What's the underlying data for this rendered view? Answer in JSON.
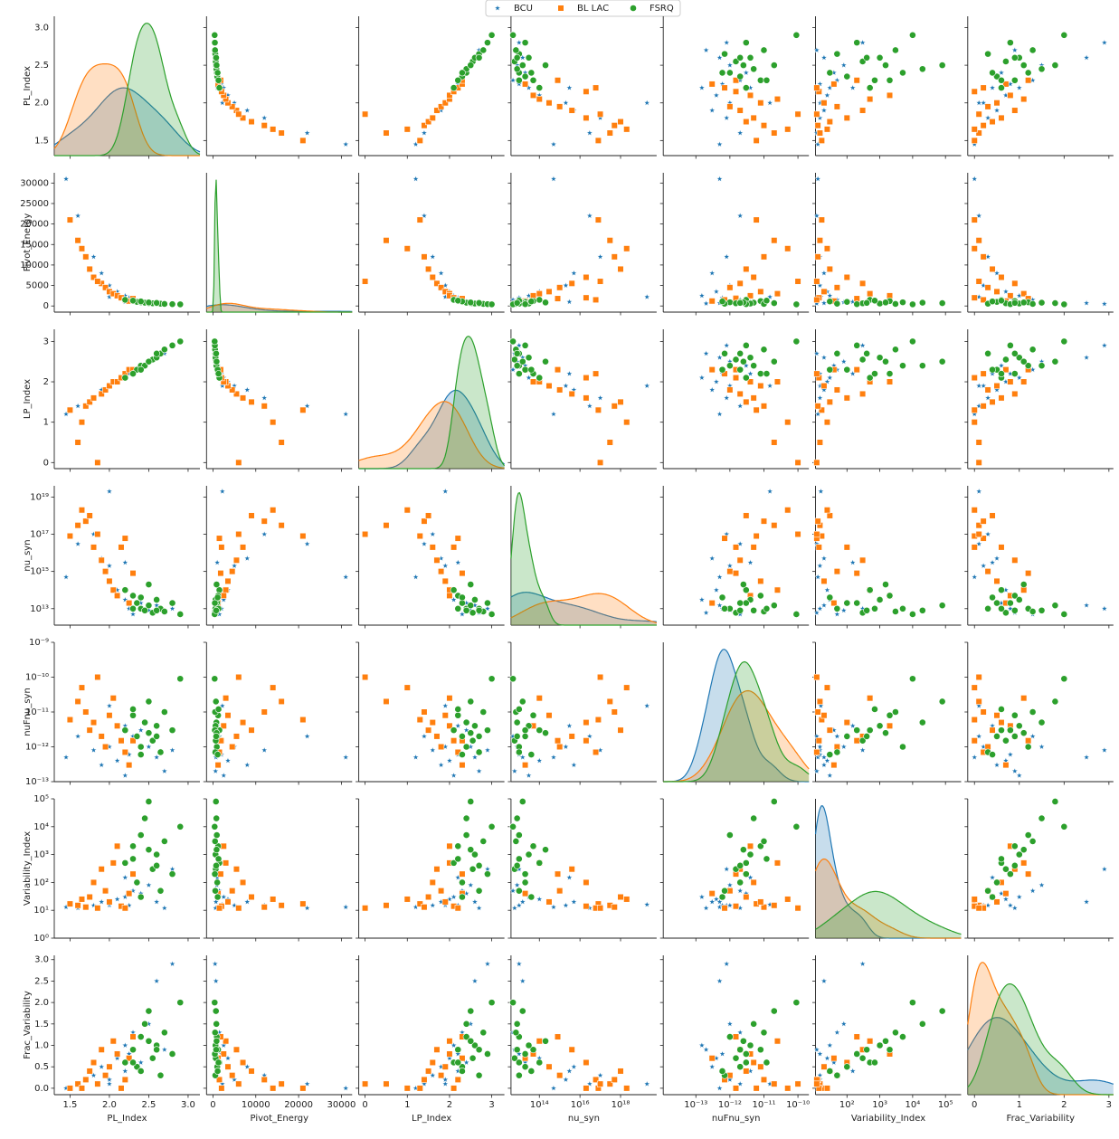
{
  "chart_data": {
    "type": "pairplot",
    "legend": "upper center",
    "variables": [
      {
        "name": "PL_Index",
        "log": false,
        "xlim": [
          1.3,
          3.15
        ],
        "ylim": [
          1.3,
          3.15
        ],
        "xticks": [
          {
            "value": 1.5,
            "label": "1.5"
          },
          {
            "value": 2.0,
            "label": "2.0"
          },
          {
            "value": 2.5,
            "label": "2.5"
          },
          {
            "value": 3.0,
            "label": "3.0"
          }
        ],
        "yticks": [
          {
            "value": 1.5,
            "label": "1.5"
          },
          {
            "value": 2.0,
            "label": "2.0"
          },
          {
            "value": 2.5,
            "label": "2.5"
          },
          {
            "value": 3.0,
            "label": "3.0"
          }
        ]
      },
      {
        "name": "Pivot_Energy",
        "log": false,
        "xlim": [
          -1500,
          32500
        ],
        "ylim": [
          -1500,
          32500
        ],
        "xticks": [
          0,
          10000,
          20000,
          30000
        ],
        "yticks": [
          0,
          5000,
          10000,
          15000,
          20000,
          25000,
          30000
        ]
      },
      {
        "name": "LP_Index",
        "log": false,
        "xlim": [
          -0.15,
          3.3
        ],
        "ylim": [
          -0.15,
          3.3
        ],
        "xticks": [
          0,
          1,
          2,
          3
        ],
        "yticks": [
          0,
          1,
          2,
          3
        ]
      },
      {
        "name": "nu_syn",
        "log": true,
        "xlim": [
          4000000000000.0,
          6e+19
        ],
        "ylim": [
          1300000000000.0,
          4e+19
        ],
        "xticks": [
          {
            "value": 100000000000000.0,
            "label": "10¹⁴"
          },
          {
            "value": 1e+16,
            "label": "10¹⁶"
          },
          {
            "value": 1e+18,
            "label": "10¹⁸"
          }
        ],
        "yticks": [
          {
            "value": 10000000000000.0,
            "label": "10¹³"
          },
          {
            "value": 1000000000000000.0,
            "label": "10¹⁵"
          },
          {
            "value": 1e+17,
            "label": "10¹⁷"
          },
          {
            "value": 1e+19,
            "label": "10¹⁹"
          }
        ]
      },
      {
        "name": "nuFnu_syn",
        "log": true,
        "xlim": [
          1.1e-14,
          2.1e-10
        ],
        "ylim": [
          1e-13,
          1e-09
        ],
        "xticks": [
          {
            "value": 1e-13,
            "label": "10⁻¹³"
          },
          {
            "value": 1e-12,
            "label": "10⁻¹²"
          },
          {
            "value": 1e-11,
            "label": "10⁻¹¹"
          },
          {
            "value": 1e-10,
            "label": "10⁻¹⁰"
          }
        ],
        "yticks": [
          {
            "value": 1e-13,
            "label": "10⁻¹³"
          },
          {
            "value": 1e-12,
            "label": "10⁻¹²"
          },
          {
            "value": 1e-11,
            "label": "10⁻¹¹"
          },
          {
            "value": 1e-10,
            "label": "10⁻¹⁰"
          },
          {
            "value": 1e-09,
            "label": "10⁻⁹"
          }
        ]
      },
      {
        "name": "Variability_Index",
        "log": true,
        "xlim": [
          11,
          300000.0
        ],
        "ylim": [
          1,
          100000.0
        ],
        "xticks": [
          {
            "value": 100,
            "label": "10²"
          },
          {
            "value": 1000,
            "label": "10³"
          },
          {
            "value": 10000,
            "label": "10⁴"
          },
          {
            "value": 100000,
            "label": "10⁵"
          }
        ],
        "yticks": [
          {
            "value": 1,
            "label": "10⁰"
          },
          {
            "value": 10,
            "label": "10¹"
          },
          {
            "value": 100,
            "label": "10²"
          },
          {
            "value": 1000,
            "label": "10³"
          },
          {
            "value": 10000,
            "label": "10⁴"
          },
          {
            "value": 100000,
            "label": "10⁵"
          }
        ]
      },
      {
        "name": "Frac_Variability",
        "log": false,
        "xlim": [
          -0.15,
          3.1
        ],
        "ylim": [
          -0.15,
          3.1
        ],
        "xticks": [
          0,
          1,
          2,
          3
        ],
        "yticks": [
          {
            "value": 0.0,
            "label": "0.0"
          },
          {
            "value": 0.5,
            "label": "0.5"
          },
          {
            "value": 1.0,
            "label": "1.0"
          },
          {
            "value": 1.5,
            "label": "1.5"
          },
          {
            "value": 2.0,
            "label": "2.0"
          },
          {
            "value": 2.5,
            "label": "2.5"
          },
          {
            "value": 3.0,
            "label": "3.0"
          }
        ]
      }
    ],
    "series": [
      {
        "name": "BCU",
        "color": "#1f77b4",
        "marker": "star",
        "values": [
          [
            1.45,
            1.6,
            1.8,
            1.9,
            2.0,
            2.1,
            2.2,
            2.25,
            2.3,
            2.4,
            2.5,
            2.6,
            2.7,
            2.8,
            2.2,
            2.0
          ],
          [
            31000,
            22000,
            12000,
            8000,
            5000,
            3500,
            2500,
            2000,
            1500,
            1200,
            900,
            700,
            600,
            500,
            1000,
            2200
          ],
          [
            1.2,
            1.4,
            1.6,
            1.8,
            1.9,
            2.0,
            2.1,
            2.2,
            2.3,
            2.4,
            2.5,
            2.6,
            2.7,
            2.9,
            2.2,
            1.9
          ],
          [
            500000000000000.0,
            3e+16,
            1e+17,
            5000000000000000.0,
            2000000000000000.0,
            100000000000000.0,
            30000000000000.0,
            10000000000000.0,
            5000000000000.0,
            20000000000000.0,
            8000000000000.0,
            15000000000000.0,
            6000000000000.0,
            10000000000000.0,
            3000000000000000.0,
            2e+19
          ],
          [
            5e-13,
            2e-12,
            8e-13,
            3e-13,
            1e-12,
            4e-13,
            1.5e-13,
            6e-13,
            2e-12,
            3e-12,
            1e-12,
            5e-13,
            2e-13,
            8e-13,
            4e-12,
            1.5e-11
          ],
          [
            13,
            12,
            15,
            20,
            15,
            25,
            30,
            15,
            50,
            40,
            80,
            20,
            12,
            300,
            150,
            16
          ],
          [
            0.0,
            0.1,
            0.3,
            0.5,
            0.2,
            0.7,
            1.0,
            0.8,
            1.3,
            0.6,
            1.5,
            2.5,
            0.9,
            2.9,
            0.4,
            0.1
          ]
        ]
      },
      {
        "name": "BL LAC",
        "color": "#ff7f0e",
        "marker": "square",
        "values": [
          [
            1.5,
            1.6,
            1.7,
            1.75,
            1.8,
            1.9,
            1.95,
            2.0,
            2.05,
            2.1,
            2.15,
            2.2,
            2.25,
            1.85,
            2.3,
            1.65
          ],
          [
            21000,
            16000,
            12000,
            9000,
            7000,
            5500,
            4500,
            3500,
            3000,
            2500,
            2000,
            1500,
            1200,
            6000,
            1800,
            14000
          ],
          [
            1.3,
            0.5,
            1.4,
            1.5,
            1.6,
            1.7,
            1.8,
            1.9,
            2.0,
            2.0,
            2.1,
            2.2,
            2.3,
            0.0,
            2.3,
            1.0
          ],
          [
            8e+16,
            3e+17,
            5e+17,
            1e+18,
            2e+16,
            4000000000000000.0,
            1000000000000000.0,
            300000000000000.0,
            100000000000000.0,
            50000000000000.0,
            2e+16,
            6e+16,
            20000000000000.0,
            1e+17,
            800000000000000.0,
            2e+18
          ],
          [
            6e-12,
            2e-11,
            1e-11,
            3e-12,
            5e-12,
            2e-12,
            1e-12,
            8e-12,
            2.5e-11,
            4e-12,
            1.5e-12,
            7e-13,
            3e-13,
            1e-10,
            1.5e-12,
            5e-11
          ],
          [
            17,
            15,
            13,
            30,
            100,
            300,
            50,
            20,
            500,
            2000,
            14,
            12,
            40,
            12,
            200,
            25
          ],
          [
            0.0,
            0.1,
            0.2,
            0.4,
            0.6,
            0.9,
            0.3,
            0.5,
            1.1,
            0.8,
            0.0,
            0.2,
            0.7,
            0.1,
            1.2,
            0.0
          ]
        ]
      },
      {
        "name": "FSRQ",
        "color": "#2ca02c",
        "marker": "circle",
        "values": [
          [
            2.2,
            2.3,
            2.35,
            2.4,
            2.45,
            2.5,
            2.55,
            2.6,
            2.65,
            2.7,
            2.8,
            2.9,
            2.4,
            2.5,
            2.3,
            2.6
          ],
          [
            1500,
            1200,
            1000,
            900,
            800,
            700,
            650,
            600,
            550,
            500,
            450,
            400,
            1100,
            850,
            1300,
            750
          ],
          [
            2.1,
            2.2,
            2.3,
            2.4,
            2.4,
            2.5,
            2.55,
            2.6,
            2.7,
            2.8,
            2.9,
            3.0,
            2.3,
            2.5,
            2.2,
            2.7
          ],
          [
            100000000000000.0,
            50000000000000.0,
            20000000000000.0,
            10000000000000.0,
            8000000000000.0,
            15000000000000.0,
            6000000000000.0,
            30000000000000.0,
            10000000000000.0,
            7000000000000.0,
            20000000000000.0,
            5000000000000.0,
            40000000000000.0,
            200000000000000.0,
            10000000000000.0,
            8000000000000.0
          ],
          [
            3e-12,
            8e-12,
            2e-12,
            1e-12,
            5e-12,
            2e-11,
            1.5e-12,
            4e-12,
            7e-13,
            1e-11,
            3e-12,
            9e-11,
            6e-13,
            2.5e-12,
            1.2e-11,
            2e-12
          ],
          [
            500,
            2000,
            100,
            5000,
            20000,
            80000,
            300,
            1000,
            50,
            3000,
            200,
            10000,
            30,
            1500,
            700,
            400
          ],
          [
            0.6,
            0.9,
            0.5,
            1.2,
            1.5,
            1.8,
            0.7,
            1.0,
            0.3,
            1.3,
            0.8,
            2.0,
            0.4,
            1.1,
            0.6,
            0.9
          ]
        ]
      }
    ]
  }
}
